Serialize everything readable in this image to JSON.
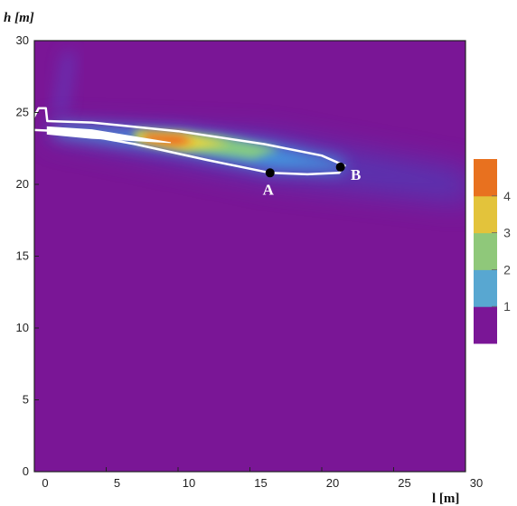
{
  "chart_data": {
    "type": "heatmap",
    "title": "",
    "ylabel": "h [m]",
    "xlabel": "l [m]",
    "xlim": [
      0,
      30
    ],
    "ylim": [
      0,
      30
    ],
    "xticks": [
      "0",
      "5",
      "10",
      "15",
      "20",
      "25",
      "30"
    ],
    "yticks": [
      "0",
      "5",
      "10",
      "15",
      "20",
      "25",
      "30"
    ],
    "grid": false,
    "background_color": "#7a1696",
    "colorbar": {
      "placement": "right",
      "labels": [
        "1",
        "2",
        "3",
        "4"
      ],
      "colors": [
        "#7a1696",
        "#58a7d1",
        "#8fc87a",
        "#e3c33b",
        "#e8711f"
      ]
    },
    "points": [
      {
        "label": "A",
        "x": 16.4,
        "y": 20.8
      },
      {
        "label": "B",
        "x": 21.3,
        "y": 21.2
      }
    ],
    "contour_outline": [
      [
        -0.5,
        23.8
      ],
      [
        0.3,
        25.3
      ],
      [
        0.8,
        25.3
      ],
      [
        0.9,
        24.4
      ],
      [
        4.0,
        24.3
      ],
      [
        10.0,
        23.7
      ],
      [
        16.0,
        22.8
      ],
      [
        20.0,
        22.0
      ],
      [
        21.6,
        21.3
      ],
      [
        21.2,
        20.8
      ],
      [
        19.0,
        20.7
      ],
      [
        16.4,
        20.8
      ],
      [
        12.0,
        21.7
      ],
      [
        7.0,
        22.8
      ],
      [
        2.0,
        23.7
      ],
      [
        -0.5,
        23.8
      ]
    ],
    "hot_zone_outline": [
      [
        0.9,
        24.0
      ],
      [
        4.0,
        23.8
      ],
      [
        9.5,
        22.9
      ],
      [
        4.0,
        23.2
      ],
      [
        0.9,
        23.5
      ],
      [
        0.9,
        24.0
      ]
    ]
  }
}
